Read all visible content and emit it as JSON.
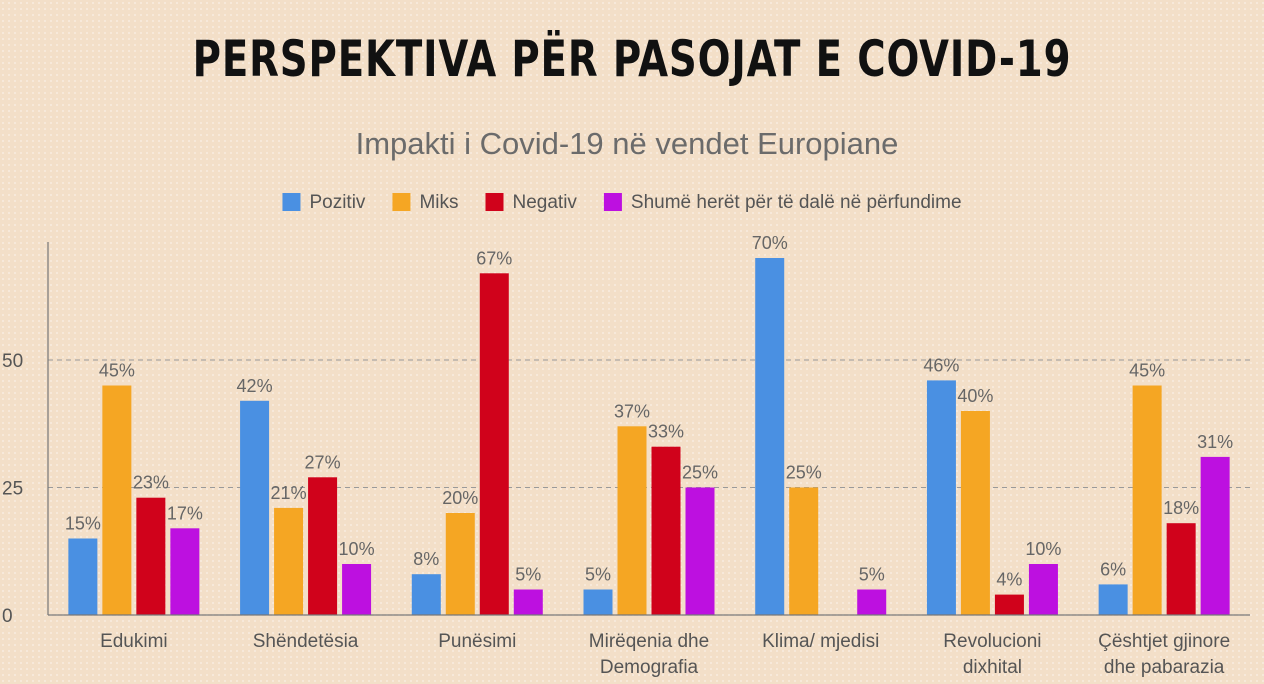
{
  "header": {
    "title": "PERSPEKTIVA PËR PASOJAT E COVID-19"
  },
  "chart_data": {
    "type": "bar",
    "title": "Impakti i Covid-19 në vendet Europiane",
    "categories": [
      [
        "Edukimi"
      ],
      [
        "Shëndetësia"
      ],
      [
        "Punësimi"
      ],
      [
        "Mirëqenia dhe",
        "Demografia"
      ],
      [
        "Klima/ mjedisi"
      ],
      [
        "Revolucioni",
        "dixhital"
      ],
      [
        "Çështjet gjinore",
        "dhe pabarazia"
      ]
    ],
    "series": [
      {
        "name": "Pozitiv",
        "color": "#4a90e2",
        "values": [
          15,
          42,
          8,
          5,
          70,
          46,
          6
        ]
      },
      {
        "name": "Miks",
        "color": "#f5a623",
        "values": [
          45,
          21,
          20,
          37,
          25,
          40,
          45
        ]
      },
      {
        "name": "Negativ",
        "color": "#d0021b",
        "values": [
          23,
          27,
          67,
          33,
          null,
          4,
          18
        ]
      },
      {
        "name": "Shumë herët për të dalë në përfundime",
        "color": "#bd10e0",
        "values": [
          17,
          10,
          5,
          25,
          5,
          10,
          31
        ]
      }
    ],
    "value_suffix": "%",
    "yticks": [
      0,
      25,
      50
    ],
    "ylim": [
      0,
      73
    ],
    "grid": true,
    "legend_position": "top"
  }
}
